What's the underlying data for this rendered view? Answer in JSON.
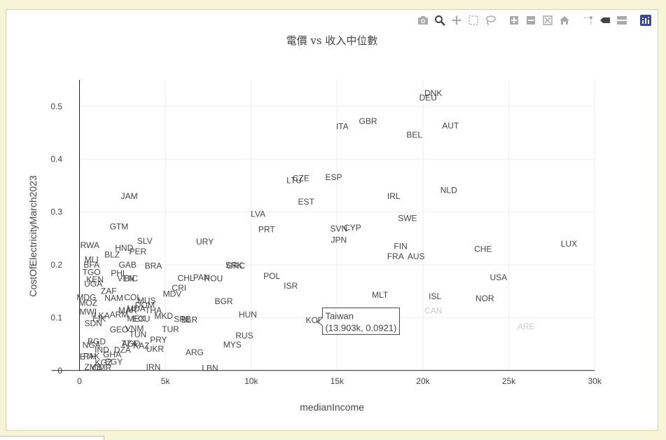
{
  "chart_data": {
    "type": "scatter",
    "title": "電價 vs 收入中位數",
    "xlabel": "medianIncome",
    "ylabel": "CostOfElectricityMarch2023",
    "xlim": [
      -1000,
      30400
    ],
    "ylim": [
      -0.06,
      0.57
    ],
    "x_ticks": [
      0,
      5000,
      10000,
      15000,
      20000,
      25000,
      30000
    ],
    "x_tick_labels": [
      "0",
      "5k",
      "10k",
      "15k",
      "20k",
      "25k",
      "30k"
    ],
    "y_ticks": [
      0,
      0.1,
      0.2,
      0.3,
      0.4,
      0.5
    ],
    "y_tick_labels": [
      "0",
      "0.1",
      "0.2",
      "0.3",
      "0.4",
      "0.5"
    ],
    "grid": true,
    "points": [
      {
        "label": "DNK",
        "x": 20600,
        "y": 0.525
      },
      {
        "label": "DEU",
        "x": 20300,
        "y": 0.516
      },
      {
        "label": "GBR",
        "x": 16800,
        "y": 0.472
      },
      {
        "label": "ITA",
        "x": 15300,
        "y": 0.462
      },
      {
        "label": "AUT",
        "x": 21600,
        "y": 0.463
      },
      {
        "label": "BEL",
        "x": 19500,
        "y": 0.446
      },
      {
        "label": "CZE",
        "x": 12900,
        "y": 0.364
      },
      {
        "label": "ESP",
        "x": 14800,
        "y": 0.366
      },
      {
        "label": "LTU",
        "x": 12500,
        "y": 0.36
      },
      {
        "label": "NLD",
        "x": 21500,
        "y": 0.341
      },
      {
        "label": "IRL",
        "x": 18300,
        "y": 0.33
      },
      {
        "label": "JAM",
        "x": 2900,
        "y": 0.33
      },
      {
        "label": "EST",
        "x": 13200,
        "y": 0.319
      },
      {
        "label": "LVA",
        "x": 10400,
        "y": 0.296
      },
      {
        "label": "SWE",
        "x": 19100,
        "y": 0.288
      },
      {
        "label": "GTM",
        "x": 2300,
        "y": 0.272
      },
      {
        "label": "PRT",
        "x": 10900,
        "y": 0.267
      },
      {
        "label": "SVN",
        "x": 15100,
        "y": 0.268
      },
      {
        "label": "CYP",
        "x": 15900,
        "y": 0.27
      },
      {
        "label": "JPN",
        "x": 15100,
        "y": 0.247
      },
      {
        "label": "URY",
        "x": 7300,
        "y": 0.244
      },
      {
        "label": "SLV",
        "x": 3800,
        "y": 0.245
      },
      {
        "label": "LUX",
        "x": 28500,
        "y": 0.24
      },
      {
        "label": "RWA",
        "x": 600,
        "y": 0.237
      },
      {
        "label": "FIN",
        "x": 18700,
        "y": 0.235
      },
      {
        "label": "HND",
        "x": 2600,
        "y": 0.232
      },
      {
        "label": "CHE",
        "x": 23500,
        "y": 0.23
      },
      {
        "label": "PER",
        "x": 3400,
        "y": 0.225
      },
      {
        "label": "BLZ",
        "x": 1900,
        "y": 0.219
      },
      {
        "label": "FRA",
        "x": 18400,
        "y": 0.216
      },
      {
        "label": "AUS",
        "x": 19600,
        "y": 0.216
      },
      {
        "label": "MLI",
        "x": 700,
        "y": 0.21
      },
      {
        "label": "GAB",
        "x": 2800,
        "y": 0.2
      },
      {
        "label": "BRA",
        "x": 4300,
        "y": 0.198
      },
      {
        "label": "BFA",
        "x": 700,
        "y": 0.2
      },
      {
        "label": "GRC",
        "x": 9100,
        "y": 0.198
      },
      {
        "label": "SRK",
        "x": 9000,
        "y": 0.199
      },
      {
        "label": "TGO",
        "x": 700,
        "y": 0.186
      },
      {
        "label": "PHL",
        "x": 2300,
        "y": 0.184
      },
      {
        "label": "POL",
        "x": 11200,
        "y": 0.179
      },
      {
        "label": "USA",
        "x": 24400,
        "y": 0.176
      },
      {
        "label": "VEN",
        "x": 2700,
        "y": 0.174
      },
      {
        "label": "BIC",
        "x": 3000,
        "y": 0.174
      },
      {
        "label": "CHL",
        "x": 6200,
        "y": 0.175
      },
      {
        "label": "PAN",
        "x": 7100,
        "y": 0.176
      },
      {
        "label": "ROU",
        "x": 7800,
        "y": 0.174
      },
      {
        "label": "KEN",
        "x": 900,
        "y": 0.172
      },
      {
        "label": "UGA",
        "x": 800,
        "y": 0.164
      },
      {
        "label": "ISR",
        "x": 12300,
        "y": 0.16
      },
      {
        "label": "CRI",
        "x": 5800,
        "y": 0.156
      },
      {
        "label": "ZAF",
        "x": 1700,
        "y": 0.15
      },
      {
        "label": "MDV",
        "x": 5400,
        "y": 0.145
      },
      {
        "label": "MLT",
        "x": 17500,
        "y": 0.143
      },
      {
        "label": "ISL",
        "x": 20700,
        "y": 0.14
      },
      {
        "label": "NOR",
        "x": 23600,
        "y": 0.136
      },
      {
        "label": "MDG",
        "x": 400,
        "y": 0.138
      },
      {
        "label": "NAM",
        "x": 2000,
        "y": 0.137
      },
      {
        "label": "COL",
        "x": 3100,
        "y": 0.138
      },
      {
        "label": "BGR",
        "x": 8400,
        "y": 0.131
      },
      {
        "label": "MUS",
        "x": 3900,
        "y": 0.132
      },
      {
        "label": "MOZ",
        "x": 500,
        "y": 0.128
      },
      {
        "label": "DOM",
        "x": 3800,
        "y": 0.124
      },
      {
        "label": "CAN",
        "x": 20600,
        "y": 0.113
      },
      {
        "label": "MDA",
        "x": 3300,
        "y": 0.117
      },
      {
        "label": "MWI",
        "x": 500,
        "y": 0.111
      },
      {
        "label": "THA",
        "x": 4300,
        "y": 0.114
      },
      {
        "label": "MAR",
        "x": 2800,
        "y": 0.114
      },
      {
        "label": "ARM",
        "x": 2300,
        "y": 0.106
      },
      {
        "label": "HUN",
        "x": 9800,
        "y": 0.106
      },
      {
        "label": "LKA",
        "x": 1300,
        "y": 0.104
      },
      {
        "label": "TJK",
        "x": 1100,
        "y": 0.098
      },
      {
        "label": "MKD",
        "x": 4900,
        "y": 0.103
      },
      {
        "label": "ECU",
        "x": 3600,
        "y": 0.098
      },
      {
        "label": "MEX",
        "x": 3300,
        "y": 0.098
      },
      {
        "label": "SRB",
        "x": 6000,
        "y": 0.097
      },
      {
        "label": "BLR",
        "x": 6400,
        "y": 0.096
      },
      {
        "label": "KOR",
        "x": 13700,
        "y": 0.095
      },
      {
        "label": "Taiwan",
        "x": 13903,
        "y": 0.0921
      },
      {
        "label": "ARE",
        "x": 26000,
        "y": 0.083
      },
      {
        "label": "SDN",
        "x": 800,
        "y": 0.089
      },
      {
        "label": "GEO",
        "x": 2300,
        "y": 0.077
      },
      {
        "label": "VNM",
        "x": 3200,
        "y": 0.079
      },
      {
        "label": "TUR",
        "x": 5300,
        "y": 0.078
      },
      {
        "label": "TUN",
        "x": 3400,
        "y": 0.068
      },
      {
        "label": "RUS",
        "x": 9600,
        "y": 0.066
      },
      {
        "label": "PRY",
        "x": 4600,
        "y": 0.058
      },
      {
        "label": "BGD",
        "x": 1000,
        "y": 0.055
      },
      {
        "label": "TZA",
        "x": 2900,
        "y": 0.051
      },
      {
        "label": "AGO",
        "x": 3000,
        "y": 0.051
      },
      {
        "label": "MYS",
        "x": 8900,
        "y": 0.049
      },
      {
        "label": "NGA",
        "x": 700,
        "y": 0.048
      },
      {
        "label": "KAZ",
        "x": 3600,
        "y": 0.047
      },
      {
        "label": "UKR",
        "x": 4400,
        "y": 0.041
      },
      {
        "label": "IND",
        "x": 1300,
        "y": 0.039
      },
      {
        "label": "DZA",
        "x": 2500,
        "y": 0.039
      },
      {
        "label": "ARG",
        "x": 6700,
        "y": 0.034
      },
      {
        "label": "GHA",
        "x": 1900,
        "y": 0.03
      },
      {
        "label": "PAK",
        "x": 700,
        "y": 0.027
      },
      {
        "label": "ETH",
        "x": 500,
        "y": 0.026
      },
      {
        "label": "EGY",
        "x": 2000,
        "y": 0.016
      },
      {
        "label": "KGZ",
        "x": 1400,
        "y": 0.015
      },
      {
        "label": "IRN",
        "x": 4300,
        "y": 0.006
      },
      {
        "label": "LBN",
        "x": 7600,
        "y": 0.004
      },
      {
        "label": "ZMB",
        "x": 800,
        "y": 0.006
      },
      {
        "label": "CMR",
        "x": 1300,
        "y": 0.005
      }
    ],
    "tooltip": {
      "line1": "Taiwan",
      "line2": "(13.903k, 0.0921)"
    },
    "colors": {
      "text": "#444444",
      "grid": "#eeeeee",
      "axis": "#222222",
      "faded": "#cccccc",
      "modebar_active": "#3b4a8c"
    }
  }
}
